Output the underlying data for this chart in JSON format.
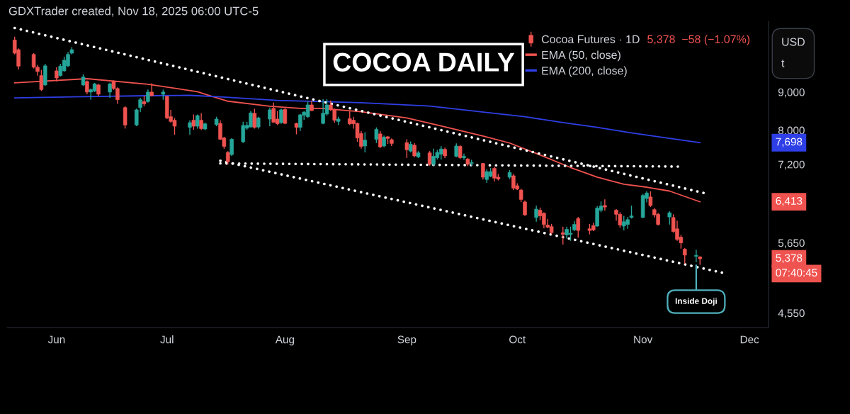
{
  "chart_data": {
    "type": "candlestick",
    "title": "COCOA DAILY",
    "ylabel": "USD\nt",
    "series": [
      {
        "name": "Cocoa Futures · 1D",
        "x": [
          "2025-05-22",
          "2025-05-23",
          "2025-05-27",
          "2025-05-28",
          "2025-05-29",
          "2025-05-30",
          "2025-06-02",
          "2025-06-03",
          "2025-06-04",
          "2025-06-05",
          "2025-06-06",
          "2025-06-09",
          "2025-06-10",
          "2025-06-11",
          "2025-06-12",
          "2025-06-13",
          "2025-06-16",
          "2025-06-17",
          "2025-06-18",
          "2025-06-20",
          "2025-06-23",
          "2025-06-24",
          "2025-06-25",
          "2025-06-26",
          "2025-06-27",
          "2025-06-30",
          "2025-07-01",
          "2025-07-02",
          "2025-07-03",
          "2025-07-07",
          "2025-07-08",
          "2025-07-09",
          "2025-07-10",
          "2025-07-11",
          "2025-07-14",
          "2025-07-15",
          "2025-07-16",
          "2025-07-17",
          "2025-07-18",
          "2025-07-21",
          "2025-07-22",
          "2025-07-23",
          "2025-07-24",
          "2025-07-25",
          "2025-07-28",
          "2025-07-29",
          "2025-07-30",
          "2025-07-31",
          "2025-08-01",
          "2025-08-04",
          "2025-08-05",
          "2025-08-06",
          "2025-08-07",
          "2025-08-08",
          "2025-08-11",
          "2025-08-12",
          "2025-08-13",
          "2025-08-14",
          "2025-08-15",
          "2025-08-18",
          "2025-08-19",
          "2025-08-20",
          "2025-08-21",
          "2025-08-22",
          "2025-08-25",
          "2025-08-26",
          "2025-08-27",
          "2025-08-28",
          "2025-08-29",
          "2025-09-02",
          "2025-09-03",
          "2025-09-04",
          "2025-09-05",
          "2025-09-08",
          "2025-09-09",
          "2025-09-10",
          "2025-09-11",
          "2025-09-12",
          "2025-09-15",
          "2025-09-16",
          "2025-09-17",
          "2025-09-18",
          "2025-09-19",
          "2025-09-22",
          "2025-09-23",
          "2025-09-24",
          "2025-09-25",
          "2025-09-26",
          "2025-09-29",
          "2025-09-30",
          "2025-10-01",
          "2025-10-02",
          "2025-10-03",
          "2025-10-06",
          "2025-10-07",
          "2025-10-08",
          "2025-10-09",
          "2025-10-10",
          "2025-10-13",
          "2025-10-14",
          "2025-10-15",
          "2025-10-16",
          "2025-10-17",
          "2025-10-20",
          "2025-10-21",
          "2025-10-22",
          "2025-10-23",
          "2025-10-24",
          "2025-10-27",
          "2025-10-28",
          "2025-10-29",
          "2025-10-30",
          "2025-10-31",
          "2025-11-03",
          "2025-11-04",
          "2025-11-05",
          "2025-11-06",
          "2025-11-07",
          "2025-11-10",
          "2025-11-11",
          "2025-11-12",
          "2025-11-13",
          "2025-11-14",
          "2025-11-17",
          "2025-11-18"
        ],
        "ohlc": [
          [
            10570,
            10680,
            10110,
            10150
          ],
          [
            10260,
            10300,
            9650,
            9750
          ],
          [
            10110,
            10150,
            9680,
            9720
          ],
          [
            9720,
            9790,
            9470,
            9590
          ],
          [
            9470,
            9640,
            9030,
            9070
          ],
          [
            9200,
            9820,
            9170,
            9760
          ],
          [
            9610,
            9720,
            9300,
            9400
          ],
          [
            9470,
            9820,
            9440,
            9750
          ],
          [
            9610,
            10040,
            9580,
            9930
          ],
          [
            9760,
            10190,
            9720,
            10110
          ],
          [
            10150,
            10340,
            10110,
            10260
          ],
          [
            9200,
            9510,
            9170,
            9430
          ],
          [
            9300,
            9330,
            8940,
            9000
          ],
          [
            9000,
            9100,
            8790,
            9070
          ],
          [
            9030,
            9260,
            9000,
            9230
          ],
          [
            9200,
            9230,
            8880,
            8940
          ],
          [
            9000,
            9270,
            8840,
            9230
          ],
          [
            9300,
            9330,
            9060,
            9100
          ],
          [
            9100,
            9130,
            8680,
            8790
          ],
          [
            8580,
            8615,
            8040,
            8130
          ],
          [
            8130,
            8550,
            8100,
            8520
          ],
          [
            8580,
            8840,
            8460,
            8790
          ],
          [
            8740,
            8900,
            8615,
            8680
          ],
          [
            8740,
            9070,
            8710,
            9000
          ],
          [
            9000,
            9250,
            8880,
            8900
          ],
          [
            8940,
            9070,
            8790,
            9000
          ],
          [
            8880,
            8900,
            8280,
            8310
          ],
          [
            8340,
            8520,
            8190,
            8220
          ],
          [
            8250,
            8310,
            7890,
            8100
          ],
          [
            8070,
            8250,
            7890,
            8190
          ],
          [
            8250,
            8400,
            8010,
            8100
          ],
          [
            8100,
            8400,
            8040,
            8370
          ],
          [
            8250,
            8430,
            8010,
            8040
          ],
          [
            8030,
            8190,
            8000,
            8160
          ],
          [
            8140,
            8340,
            8100,
            8280
          ],
          [
            8170,
            8250,
            7760,
            7780
          ],
          [
            7810,
            7840,
            7555,
            7610
          ],
          [
            7470,
            7500,
            7200,
            7260
          ],
          [
            7420,
            7810,
            7390,
            7780
          ],
          [
            7720,
            8210,
            7690,
            8120
          ],
          [
            8050,
            8210,
            8010,
            8120
          ],
          [
            8080,
            8490,
            8070,
            8440
          ],
          [
            8430,
            8550,
            8040,
            8070
          ],
          [
            8080,
            8340,
            8040,
            8310
          ],
          [
            8280,
            8580,
            8100,
            8520
          ],
          [
            8560,
            8710,
            8190,
            8200
          ],
          [
            8280,
            8490,
            8130,
            8160
          ],
          [
            8190,
            8550,
            8160,
            8520
          ],
          [
            8530,
            8570,
            8150,
            8170
          ],
          [
            8170,
            8190,
            7900,
            8070
          ],
          [
            8070,
            8410,
            7980,
            8390
          ],
          [
            8380,
            8490,
            8260,
            8460
          ],
          [
            8340,
            8740,
            8310,
            8650
          ],
          [
            8650,
            8770,
            8490,
            8500
          ],
          [
            8170,
            8805,
            8150,
            8430
          ],
          [
            8410,
            8805,
            8370,
            8650
          ],
          [
            8650,
            8770,
            8490,
            8520
          ],
          [
            8520,
            8550,
            8190,
            8250
          ],
          [
            8220,
            8340,
            8130,
            8280
          ],
          [
            8290,
            8490,
            8130,
            8160
          ],
          [
            8250,
            8340,
            8040,
            8160
          ],
          [
            8170,
            8190,
            7720,
            7810
          ],
          [
            7920,
            7980,
            7555,
            7610
          ],
          [
            7620,
            7950,
            7470,
            7760
          ],
          [
            7780,
            8070,
            7690,
            8020
          ],
          [
            7910,
            7980,
            7570,
            7600
          ],
          [
            7620,
            7870,
            7590,
            7830
          ],
          [
            7840,
            7860,
            7670,
            7800
          ],
          [
            7770,
            7800,
            7620,
            7680
          ],
          [
            7700,
            7780,
            7340,
            7530
          ],
          [
            7500,
            7730,
            7470,
            7660
          ],
          [
            7640,
            7690,
            7360,
            7390
          ],
          [
            7370,
            7500,
            7340,
            7460
          ],
          [
            7460,
            7500,
            7170,
            7200
          ],
          [
            7200,
            7555,
            7170,
            7380
          ],
          [
            7350,
            7530,
            7310,
            7470
          ],
          [
            7430,
            7620,
            7310,
            7550
          ],
          [
            7540,
            7580,
            7340,
            7390
          ],
          [
            7380,
            7680,
            7360,
            7620
          ],
          [
            7610,
            7640,
            7320,
            7350
          ],
          [
            7350,
            7440,
            7300,
            7380
          ],
          [
            7320,
            7340,
            7160,
            7200
          ],
          [
            7220,
            7300,
            7170,
            7240
          ],
          [
            7220,
            7230,
            6870,
            6920
          ],
          [
            6870,
            7090,
            6800,
            7040
          ],
          [
            6940,
            7120,
            6920,
            7040
          ],
          [
            7110,
            7150,
            6830,
            6900
          ],
          [
            6920,
            6990,
            6850,
            6880
          ],
          [
            6920,
            7075,
            6880,
            7020
          ],
          [
            6950,
            6990,
            6650,
            6690
          ],
          [
            6740,
            6790,
            6650,
            6670
          ],
          [
            6650,
            6680,
            6410,
            6460
          ],
          [
            6410,
            6440,
            6140,
            6160
          ],
          [
            6110,
            6340,
            6030,
            6270
          ],
          [
            6250,
            6300,
            6060,
            6140
          ],
          [
            6190,
            6210,
            5910,
            5980
          ],
          [
            5970,
            6080,
            5910,
            5930
          ],
          [
            5940,
            5990,
            5800,
            5830
          ],
          [
            5830,
            5940,
            5620,
            5800
          ],
          [
            5790,
            5940,
            5730,
            5890
          ],
          [
            5800,
            5940,
            5685,
            5820
          ],
          [
            5880,
            6040,
            5860,
            5980
          ],
          [
            6090,
            6120,
            5740,
            5870
          ],
          [
            5900,
            5990,
            5800,
            5870
          ],
          [
            5960,
            6010,
            5860,
            5880
          ],
          [
            5950,
            6330,
            5940,
            6290
          ],
          [
            6250,
            6420,
            6210,
            6330
          ],
          [
            6340,
            6460,
            6240,
            6310
          ],
          [
            6250,
            6270,
            6050,
            6170
          ],
          [
            6170,
            6210,
            5920,
            5970
          ],
          [
            5950,
            6140,
            5870,
            6030
          ],
          [
            5980,
            6120,
            5900,
            6070
          ],
          [
            6110,
            6340,
            6090,
            6140
          ],
          [
            6110,
            6570,
            6100,
            6540
          ],
          [
            6480,
            6625,
            6400,
            6590
          ],
          [
            6510,
            6625,
            6310,
            6340
          ],
          [
            6260,
            6290,
            6110,
            6160
          ],
          [
            6170,
            6200,
            5960,
            5980
          ],
          [
            6120,
            6230,
            5980,
            6200
          ],
          [
            6110,
            6170,
            5830,
            5850
          ],
          [
            5900,
            6050,
            5685,
            5710
          ],
          [
            5750,
            5790,
            5550,
            5650
          ],
          [
            5540,
            5560,
            5300,
            5440
          ],
          [
            5420,
            5530,
            5320,
            5436
          ],
          [
            5410,
            5420,
            5280,
            5378
          ]
        ],
        "colors": [
          "#ef5350",
          "#ef5350",
          "#ef5350",
          "#ef5350",
          "#ef5350",
          "#26a69a",
          "#ef5350",
          "#26a69a",
          "#26a69a",
          "#26a69a",
          "#26a69a",
          "#26a69a",
          "#ef5350",
          "#26a69a",
          "#26a69a",
          "#ef5350",
          "#26a69a",
          "#ef5350",
          "#ef5350",
          "#ef5350",
          "#26a69a",
          "#26a69a",
          "#ef5350",
          "#26a69a",
          "#ef5350",
          "#26a69a",
          "#ef5350",
          "#ef5350",
          "#ef5350",
          "#26a69a",
          "#ef5350",
          "#26a69a",
          "#ef5350",
          "#26a69a",
          "#26a69a",
          "#ef5350",
          "#ef5350",
          "#ef5350",
          "#26a69a",
          "#26a69a",
          "#26a69a",
          "#26a69a",
          "#ef5350",
          "#26a69a",
          "#26a69a",
          "#ef5350",
          "#ef5350",
          "#26a69a",
          "#ef5350",
          "#ef5350",
          "#26a69a",
          "#26a69a",
          "#26a69a",
          "#ef5350",
          "#26a69a",
          "#26a69a",
          "#ef5350",
          "#ef5350",
          "#26a69a",
          "#ef5350",
          "#ef5350",
          "#ef5350",
          "#ef5350",
          "#26a69a",
          "#26a69a",
          "#ef5350",
          "#26a69a",
          "#ef5350",
          "#ef5350",
          "#ef5350",
          "#26a69a",
          "#ef5350",
          "#26a69a",
          "#ef5350",
          "#26a69a",
          "#26a69a",
          "#26a69a",
          "#ef5350",
          "#26a69a",
          "#ef5350",
          "#26a69a",
          "#ef5350",
          "#26a69a",
          "#ef5350",
          "#26a69a",
          "#26a69a",
          "#ef5350",
          "#ef5350",
          "#26a69a",
          "#ef5350",
          "#ef5350",
          "#ef5350",
          "#ef5350",
          "#26a69a",
          "#ef5350",
          "#ef5350",
          "#ef5350",
          "#ef5350",
          "#ef5350",
          "#26a69a",
          "#26a69a",
          "#26a69a",
          "#ef5350",
          "#ef5350",
          "#ef5350",
          "#26a69a",
          "#26a69a",
          "#ef5350",
          "#ef5350",
          "#ef5350",
          "#26a69a",
          "#26a69a",
          "#26a69a",
          "#26a69a",
          "#26a69a",
          "#ef5350",
          "#ef5350",
          "#ef5350",
          "#26a69a",
          "#ef5350",
          "#ef5350",
          "#ef5350",
          "#ef5350",
          "#26a69a",
          "#ef5350"
        ],
        "value_labels": [
          null,
          null,
          null,
          null,
          null,
          null,
          null,
          null,
          null,
          null,
          null,
          null,
          null,
          null,
          null,
          null,
          null,
          null,
          null,
          null,
          null,
          null,
          null,
          null,
          null,
          null,
          null,
          null,
          null,
          null,
          null,
          null,
          null,
          null,
          null,
          null,
          null,
          null,
          null,
          null,
          null,
          null,
          null,
          null,
          null,
          null,
          null,
          null,
          null,
          null,
          null,
          null,
          null,
          null,
          null,
          null,
          null,
          null,
          null,
          null,
          null,
          null,
          null,
          null,
          null,
          null,
          null,
          null,
          null,
          null,
          null,
          null,
          null,
          null,
          null,
          null,
          null,
          null,
          null,
          null,
          null,
          null,
          null,
          null,
          null,
          null,
          null,
          null,
          null,
          null,
          null,
          null,
          null,
          null,
          null,
          null,
          null,
          null,
          null,
          null,
          null,
          null,
          null,
          null,
          null,
          null,
          null,
          null,
          null,
          null,
          null,
          null,
          null,
          null,
          null,
          null,
          null,
          null,
          null,
          null,
          null,
          null,
          null,
          null,
          "5,378"
        ]
      },
      {
        "name": "EMA (50, close)",
        "type": "line",
        "color": "#f0524f",
        "x": [
          "2025-05-22",
          "2025-06-10",
          "2025-06-26",
          "2025-07-09",
          "2025-07-11",
          "2025-07-17",
          "2025-07-28",
          "2025-08-05",
          "2025-08-11",
          "2025-08-15",
          "2025-08-21",
          "2025-09-02",
          "2025-09-10",
          "2025-09-22",
          "2025-09-29",
          "2025-10-07",
          "2025-10-15",
          "2025-10-22",
          "2025-10-29",
          "2025-11-04",
          "2025-11-10",
          "2025-11-18"
        ],
        "values": [
          9260,
          9380,
          9220,
          9010,
          8940,
          8750,
          8615,
          8560,
          8560,
          8520,
          8470,
          8310,
          8130,
          7860,
          7690,
          7410,
          7130,
          6920,
          6770,
          6710,
          6630,
          6413
        ]
      },
      {
        "name": "EMA (200, close)",
        "type": "line",
        "color": "#2f3fe6",
        "x": [
          "2025-05-22",
          "2025-06-06",
          "2025-06-26",
          "2025-07-07",
          "2025-07-15",
          "2025-07-30",
          "2025-08-11",
          "2025-08-21",
          "2025-09-08",
          "2025-09-25",
          "2025-10-03",
          "2025-10-13",
          "2025-10-22",
          "2025-10-30",
          "2025-11-07",
          "2025-11-18"
        ],
        "values": [
          8840,
          8870,
          8900,
          8910,
          8870,
          8770,
          8740,
          8710,
          8620,
          8430,
          8340,
          8190,
          8070,
          7950,
          7840,
          7698
        ]
      },
      {
        "type": "line",
        "color": "#ffffff",
        "line_style": "dotted",
        "x": [
          "2025-05-22",
          "2025-11-19"
        ],
        "values": [
          10970,
          6590
        ]
      },
      {
        "type": "line",
        "color": "#ffffff",
        "line_style": "dotted",
        "x": [
          "2025-07-15",
          "2025-11-24"
        ],
        "values": [
          7280,
          5150
        ]
      },
      {
        "type": "line",
        "color": "#ffffff",
        "line_style": "dotted",
        "x": [
          "2025-07-15",
          "2025-11-13"
        ],
        "values": [
          7220,
          7150
        ]
      }
    ],
    "legend": "top right",
    "log": "y",
    "xlim": [
      "2025-05-20",
      "2025-12-06"
    ],
    "xticks": [
      {
        "value": "2025-06-02",
        "label": "Jun"
      },
      {
        "value": "2025-07-01",
        "label": "Jul"
      },
      {
        "value": "2025-08-01",
        "label": "Aug"
      },
      {
        "value": "2025-09-02",
        "label": "Sep"
      },
      {
        "value": "2025-10-01",
        "label": "Oct"
      },
      {
        "value": "2025-11-03",
        "label": "Nov"
      },
      {
        "value": "2025-12-01",
        "label": "Dec"
      }
    ],
    "ylim": [
      4350,
      11200
    ],
    "yticks": [
      {
        "value": 4550,
        "label": "4,550"
      },
      {
        "value": 5650,
        "label": "5,650"
      },
      {
        "value": 7200,
        "label": "7,200"
      },
      {
        "value": 8000,
        "label": "8,000"
      },
      {
        "value": 9000,
        "label": "9,000"
      }
    ],
    "annotations": [
      "GDXTrader created, Nov 18, 2025 06:00 UTC-5",
      "5,378  −58 (−1.07%)",
      "6,413",
      "7,698",
      "07:40:45",
      {
        "text": "Inside Doji",
        "x": "2025-11-17",
        "y": 5320
      }
    ]
  }
}
